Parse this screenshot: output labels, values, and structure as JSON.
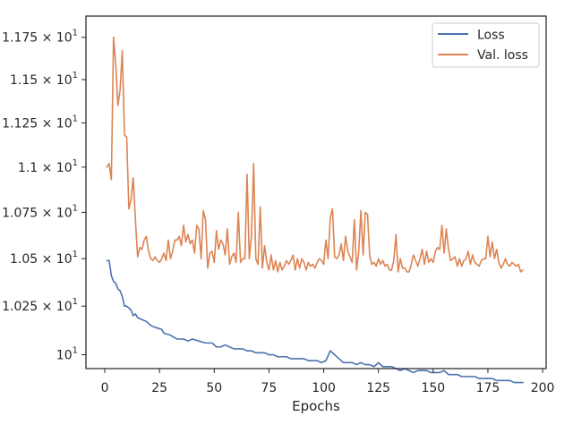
{
  "chart_data": {
    "type": "line",
    "title": "",
    "xlabel": "Epochs",
    "ylabel": "",
    "xlim": [
      -8.6,
      201.6
    ],
    "ylim": [
      9.93,
      11.877
    ],
    "y_scale": "log",
    "grid": false,
    "legend_position": "top-right",
    "x_ticks": [
      0,
      25,
      50,
      75,
      100,
      125,
      150,
      175,
      200
    ],
    "x_tick_labels": [
      "0",
      "25",
      "50",
      "75",
      "100",
      "125",
      "150",
      "175",
      "200"
    ],
    "y_ticks": [
      10.0,
      10.25,
      10.5,
      10.75,
      11.0,
      11.25,
      11.5,
      11.75
    ],
    "y_tick_labels": [
      {
        "mantissa": "",
        "base": "10",
        "exp": "1"
      },
      {
        "mantissa": "1.025 × ",
        "base": "10",
        "exp": "1"
      },
      {
        "mantissa": "1.05 × ",
        "base": "10",
        "exp": "1"
      },
      {
        "mantissa": "1.075 × ",
        "base": "10",
        "exp": "1"
      },
      {
        "mantissa": "1.1 × ",
        "base": "10",
        "exp": "1"
      },
      {
        "mantissa": "1.125 × ",
        "base": "10",
        "exp": "1"
      },
      {
        "mantissa": "1.15 × ",
        "base": "10",
        "exp": "1"
      },
      {
        "mantissa": "1.175 × ",
        "base": "10",
        "exp": "1"
      }
    ],
    "series": [
      {
        "name": "Loss",
        "color": "#4c72b0",
        "points": [
          [
            1,
            10.49
          ],
          [
            2,
            10.49
          ],
          [
            3,
            10.41
          ],
          [
            4,
            10.38
          ],
          [
            5,
            10.37
          ],
          [
            6,
            10.34
          ],
          [
            7,
            10.33
          ],
          [
            8,
            10.3
          ],
          [
            9,
            10.25
          ],
          [
            10,
            10.25
          ],
          [
            11,
            10.24
          ],
          [
            12,
            10.23
          ],
          [
            13,
            10.2
          ],
          [
            14,
            10.21
          ],
          [
            15,
            10.19
          ],
          [
            17,
            10.18
          ],
          [
            19,
            10.17
          ],
          [
            21,
            10.15
          ],
          [
            23,
            10.14
          ],
          [
            26,
            10.13
          ],
          [
            27,
            10.11
          ],
          [
            30,
            10.1
          ],
          [
            33,
            10.08
          ],
          [
            36,
            10.08
          ],
          [
            38,
            10.07
          ],
          [
            40,
            10.08
          ],
          [
            43,
            10.07
          ],
          [
            46,
            10.06
          ],
          [
            49,
            10.06
          ],
          [
            51,
            10.04
          ],
          [
            53,
            10.04
          ],
          [
            55,
            10.05
          ],
          [
            57,
            10.04
          ],
          [
            59,
            10.03
          ],
          [
            61,
            10.03
          ],
          [
            63,
            10.03
          ],
          [
            65,
            10.02
          ],
          [
            67,
            10.02
          ],
          [
            69,
            10.01
          ],
          [
            71,
            10.01
          ],
          [
            73,
            10.01
          ],
          [
            75,
            10.0
          ],
          [
            77,
            10.0
          ],
          [
            79,
            9.99
          ],
          [
            81,
            9.99
          ],
          [
            83,
            9.99
          ],
          [
            85,
            9.98
          ],
          [
            87,
            9.98
          ],
          [
            89,
            9.98
          ],
          [
            91,
            9.98
          ],
          [
            93,
            9.97
          ],
          [
            95,
            9.97
          ],
          [
            97,
            9.97
          ],
          [
            99,
            9.96
          ],
          [
            101,
            9.97
          ],
          [
            103,
            10.02
          ],
          [
            105,
            10.0
          ],
          [
            107,
            9.98
          ],
          [
            109,
            9.96
          ],
          [
            111,
            9.96
          ],
          [
            113,
            9.96
          ],
          [
            115,
            9.95
          ],
          [
            117,
            9.96
          ],
          [
            119,
            9.95
          ],
          [
            121,
            9.95
          ],
          [
            123,
            9.94
          ],
          [
            125,
            9.96
          ],
          [
            127,
            9.94
          ],
          [
            129,
            9.94
          ],
          [
            131,
            9.94
          ],
          [
            133,
            9.93
          ],
          [
            135,
            9.92
          ],
          [
            137,
            9.93
          ],
          [
            139,
            9.92
          ],
          [
            141,
            9.91
          ],
          [
            143,
            9.92
          ],
          [
            145,
            9.92
          ],
          [
            147,
            9.92
          ],
          [
            149,
            9.91
          ],
          [
            151,
            9.91
          ],
          [
            153,
            9.91
          ],
          [
            155,
            9.92
          ],
          [
            157,
            9.9
          ],
          [
            159,
            9.9
          ],
          [
            161,
            9.9
          ],
          [
            163,
            9.89
          ],
          [
            165,
            9.89
          ],
          [
            167,
            9.89
          ],
          [
            169,
            9.89
          ],
          [
            171,
            9.88
          ],
          [
            173,
            9.88
          ],
          [
            175,
            9.88
          ],
          [
            177,
            9.88
          ],
          [
            179,
            9.87
          ],
          [
            181,
            9.87
          ],
          [
            183,
            9.87
          ],
          [
            185,
            9.87
          ],
          [
            187,
            9.86
          ],
          [
            189,
            9.86
          ],
          [
            191,
            9.86
          ]
        ]
      },
      {
        "name": "Val. loss",
        "color": "#dd8452",
        "points": [
          [
            1,
            11.0
          ],
          [
            2,
            11.02
          ],
          [
            3,
            10.93
          ],
          [
            4,
            11.75
          ],
          [
            5,
            11.59
          ],
          [
            6,
            11.35
          ],
          [
            7,
            11.44
          ],
          [
            8,
            11.67
          ],
          [
            9,
            11.18
          ],
          [
            10,
            11.17
          ],
          [
            11,
            10.77
          ],
          [
            12,
            10.82
          ],
          [
            13,
            10.94
          ],
          [
            14,
            10.71
          ],
          [
            15,
            10.51
          ],
          [
            16,
            10.56
          ],
          [
            17,
            10.55
          ],
          [
            18,
            10.6
          ],
          [
            19,
            10.62
          ],
          [
            20,
            10.54
          ],
          [
            21,
            10.5
          ],
          [
            22,
            10.49
          ],
          [
            23,
            10.51
          ],
          [
            24,
            10.49
          ],
          [
            25,
            10.48
          ],
          [
            26,
            10.5
          ],
          [
            27,
            10.53
          ],
          [
            28,
            10.49
          ],
          [
            29,
            10.6
          ],
          [
            30,
            10.5
          ],
          [
            31,
            10.54
          ],
          [
            32,
            10.6
          ],
          [
            33,
            10.6
          ],
          [
            34,
            10.62
          ],
          [
            35,
            10.57
          ],
          [
            36,
            10.68
          ],
          [
            37,
            10.59
          ],
          [
            38,
            10.63
          ],
          [
            39,
            10.58
          ],
          [
            40,
            10.6
          ],
          [
            41,
            10.53
          ],
          [
            42,
            10.68
          ],
          [
            43,
            10.66
          ],
          [
            44,
            10.5
          ],
          [
            45,
            10.76
          ],
          [
            46,
            10.71
          ],
          [
            47,
            10.45
          ],
          [
            48,
            10.53
          ],
          [
            49,
            10.54
          ],
          [
            50,
            10.48
          ],
          [
            51,
            10.65
          ],
          [
            52,
            10.55
          ],
          [
            53,
            10.6
          ],
          [
            54,
            10.58
          ],
          [
            55,
            10.52
          ],
          [
            56,
            10.66
          ],
          [
            57,
            10.47
          ],
          [
            58,
            10.51
          ],
          [
            59,
            10.53
          ],
          [
            60,
            10.48
          ],
          [
            61,
            10.75
          ],
          [
            62,
            10.48
          ],
          [
            63,
            10.5
          ],
          [
            64,
            10.5
          ],
          [
            65,
            10.96
          ],
          [
            66,
            10.5
          ],
          [
            67,
            10.62
          ],
          [
            68,
            11.02
          ],
          [
            69,
            10.5
          ],
          [
            70,
            10.47
          ],
          [
            71,
            10.78
          ],
          [
            72,
            10.45
          ],
          [
            73,
            10.57
          ],
          [
            74,
            10.48
          ],
          [
            75,
            10.44
          ],
          [
            76,
            10.52
          ],
          [
            77,
            10.44
          ],
          [
            78,
            10.49
          ],
          [
            79,
            10.43
          ],
          [
            80,
            10.48
          ],
          [
            81,
            10.44
          ],
          [
            82,
            10.46
          ],
          [
            83,
            10.49
          ],
          [
            84,
            10.47
          ],
          [
            85,
            10.49
          ],
          [
            86,
            10.52
          ],
          [
            87,
            10.44
          ],
          [
            88,
            10.5
          ],
          [
            89,
            10.45
          ],
          [
            90,
            10.5
          ],
          [
            91,
            10.48
          ],
          [
            92,
            10.44
          ],
          [
            93,
            10.48
          ],
          [
            94,
            10.46
          ],
          [
            95,
            10.47
          ],
          [
            96,
            10.45
          ],
          [
            97,
            10.48
          ],
          [
            98,
            10.5
          ],
          [
            99,
            10.49
          ],
          [
            100,
            10.47
          ],
          [
            101,
            10.6
          ],
          [
            102,
            10.5
          ],
          [
            103,
            10.72
          ],
          [
            104,
            10.77
          ],
          [
            105,
            10.51
          ],
          [
            106,
            10.5
          ],
          [
            107,
            10.52
          ],
          [
            108,
            10.58
          ],
          [
            109,
            10.49
          ],
          [
            110,
            10.62
          ],
          [
            111,
            10.54
          ],
          [
            112,
            10.51
          ],
          [
            113,
            10.48
          ],
          [
            114,
            10.71
          ],
          [
            115,
            10.44
          ],
          [
            116,
            10.54
          ],
          [
            117,
            10.76
          ],
          [
            118,
            10.52
          ],
          [
            119,
            10.75
          ],
          [
            120,
            10.74
          ],
          [
            121,
            10.52
          ],
          [
            122,
            10.47
          ],
          [
            123,
            10.48
          ],
          [
            124,
            10.46
          ],
          [
            125,
            10.5
          ],
          [
            126,
            10.47
          ],
          [
            127,
            10.49
          ],
          [
            128,
            10.46
          ],
          [
            129,
            10.47
          ],
          [
            130,
            10.44
          ],
          [
            131,
            10.44
          ],
          [
            132,
            10.49
          ],
          [
            133,
            10.63
          ],
          [
            134,
            10.43
          ],
          [
            135,
            10.5
          ],
          [
            136,
            10.45
          ],
          [
            137,
            10.45
          ],
          [
            138,
            10.43
          ],
          [
            139,
            10.43
          ],
          [
            140,
            10.47
          ],
          [
            141,
            10.52
          ],
          [
            142,
            10.49
          ],
          [
            143,
            10.46
          ],
          [
            144,
            10.5
          ],
          [
            145,
            10.55
          ],
          [
            146,
            10.47
          ],
          [
            147,
            10.54
          ],
          [
            148,
            10.48
          ],
          [
            149,
            10.5
          ],
          [
            150,
            10.48
          ],
          [
            151,
            10.54
          ],
          [
            152,
            10.56
          ],
          [
            153,
            10.55
          ],
          [
            154,
            10.68
          ],
          [
            155,
            10.53
          ],
          [
            156,
            10.66
          ],
          [
            157,
            10.55
          ],
          [
            158,
            10.49
          ],
          [
            159,
            10.5
          ],
          [
            160,
            10.51
          ],
          [
            161,
            10.46
          ],
          [
            162,
            10.5
          ],
          [
            163,
            10.46
          ],
          [
            164,
            10.49
          ],
          [
            165,
            10.5
          ],
          [
            166,
            10.54
          ],
          [
            167,
            10.47
          ],
          [
            168,
            10.52
          ],
          [
            169,
            10.48
          ],
          [
            170,
            10.47
          ],
          [
            171,
            10.46
          ],
          [
            172,
            10.49
          ],
          [
            173,
            10.5
          ],
          [
            174,
            10.5
          ],
          [
            175,
            10.62
          ],
          [
            176,
            10.51
          ],
          [
            177,
            10.59
          ],
          [
            178,
            10.5
          ],
          [
            179,
            10.55
          ],
          [
            180,
            10.48
          ],
          [
            181,
            10.45
          ],
          [
            182,
            10.47
          ],
          [
            183,
            10.5
          ],
          [
            184,
            10.47
          ],
          [
            185,
            10.46
          ],
          [
            186,
            10.48
          ],
          [
            187,
            10.47
          ],
          [
            188,
            10.46
          ],
          [
            189,
            10.47
          ],
          [
            190,
            10.43
          ],
          [
            191,
            10.44
          ]
        ]
      }
    ]
  }
}
